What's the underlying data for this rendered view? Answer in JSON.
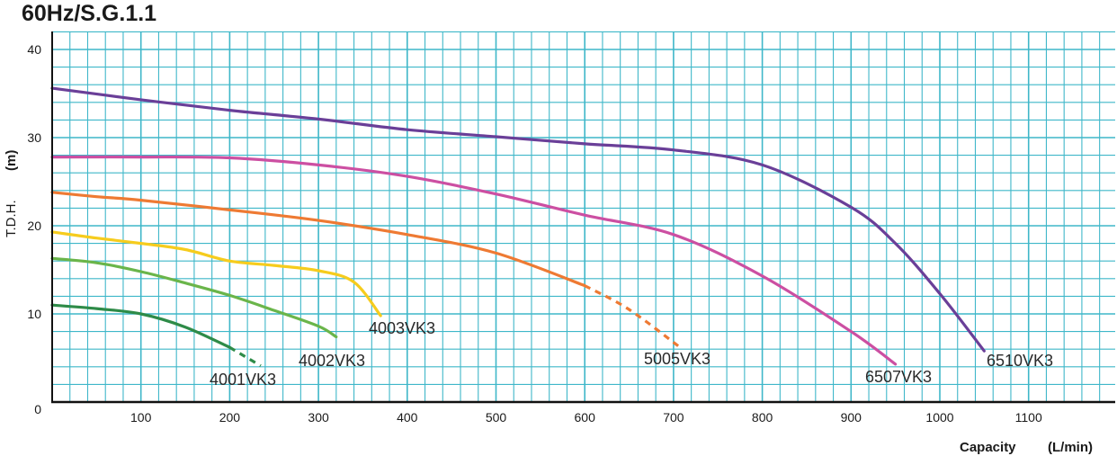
{
  "chart_data": {
    "type": "line",
    "title": "60Hz/S.G.1.1",
    "xlabel": "Capacity (L/min)",
    "ylabel": "T.D.H. (m)",
    "xlim": [
      0,
      1200
    ],
    "ylim": [
      0,
      41
    ],
    "x_ticks": [
      "100",
      "200",
      "300",
      "400",
      "500",
      "600",
      "700",
      "800",
      "900",
      "1000",
      "1100"
    ],
    "y_ticks": [
      "0",
      "10",
      "20",
      "30",
      "40"
    ],
    "grid": true,
    "grid_color": "#3fb7c9",
    "series": [
      {
        "name": "4001VK3",
        "color": "#2e8b48",
        "points": [
          [
            0,
            11
          ],
          [
            50,
            10.6
          ],
          [
            100,
            10
          ],
          [
            150,
            8.5
          ],
          [
            200,
            6.2
          ]
        ],
        "dashed_points": [
          [
            200,
            6.2
          ],
          [
            235,
            4.1
          ]
        ]
      },
      {
        "name": "4002VK3",
        "color": "#6ab54a",
        "points": [
          [
            0,
            16.3
          ],
          [
            50,
            15.8
          ],
          [
            100,
            14.8
          ],
          [
            150,
            13.5
          ],
          [
            200,
            12.1
          ],
          [
            250,
            10.4
          ],
          [
            300,
            8.6
          ],
          [
            320,
            7.4
          ]
        ],
        "dashed_points": []
      },
      {
        "name": "4003VK3",
        "color": "#f6cc1d",
        "points": [
          [
            0,
            19.3
          ],
          [
            50,
            18.6
          ],
          [
            100,
            18
          ],
          [
            150,
            17.3
          ],
          [
            200,
            16
          ],
          [
            250,
            15.5
          ],
          [
            300,
            14.9
          ],
          [
            340,
            13.6
          ],
          [
            370,
            9.8
          ]
        ],
        "dashed_points": []
      },
      {
        "name": "5005VK3",
        "color": "#ee7a33",
        "points": [
          [
            0,
            23.8
          ],
          [
            50,
            23.3
          ],
          [
            100,
            22.9
          ],
          [
            200,
            21.8
          ],
          [
            300,
            20.6
          ],
          [
            400,
            19
          ],
          [
            500,
            16.9
          ],
          [
            600,
            13.2
          ]
        ],
        "dashed_points": [
          [
            600,
            13.2
          ],
          [
            650,
            10.5
          ],
          [
            710,
            6
          ]
        ]
      },
      {
        "name": "6507VK3",
        "color": "#cc4fa2",
        "points": [
          [
            0,
            27.8
          ],
          [
            100,
            27.8
          ],
          [
            200,
            27.7
          ],
          [
            300,
            26.9
          ],
          [
            400,
            25.6
          ],
          [
            500,
            23.6
          ],
          [
            600,
            21.2
          ],
          [
            700,
            19
          ],
          [
            800,
            14.3
          ],
          [
            900,
            8
          ],
          [
            950,
            4.3
          ]
        ],
        "dashed_points": []
      },
      {
        "name": "6510VK3",
        "color": "#6a3f98",
        "points": [
          [
            0,
            35.6
          ],
          [
            100,
            34.3
          ],
          [
            200,
            33.1
          ],
          [
            300,
            32.1
          ],
          [
            400,
            30.9
          ],
          [
            500,
            30.1
          ],
          [
            600,
            29.3
          ],
          [
            700,
            28.6
          ],
          [
            800,
            26.9
          ],
          [
            900,
            22.1
          ],
          [
            950,
            18
          ],
          [
            1000,
            12.3
          ],
          [
            1050,
            5.8
          ]
        ],
        "dashed_points": []
      }
    ]
  }
}
